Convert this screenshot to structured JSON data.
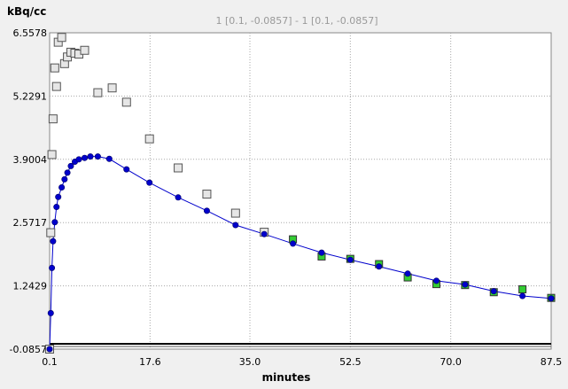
{
  "chart_data": {
    "type": "scatter",
    "title": "1 [0.1, -0.0857] - 1 [0.1, -0.0857]",
    "xlabel": "minutes",
    "ylabel": "kBq/cc",
    "xlim": [
      0.1,
      87.5
    ],
    "ylim": [
      -0.0857,
      6.5578
    ],
    "x_ticks": [
      "0.1",
      "17.6",
      "35.0",
      "52.5",
      "70.0",
      "87.5"
    ],
    "y_ticks": [
      "-0.0857",
      "1.2429",
      "2.5717",
      "3.9004",
      "5.2291",
      "6.5578"
    ],
    "grid": true,
    "legend": "none",
    "series": [
      {
        "kind": "markers-gray-squares",
        "color": "#e6e6e6",
        "x": [
          0.1,
          0.3,
          0.5,
          0.7,
          1.0,
          1.3,
          1.6,
          2.2,
          2.7,
          3.2,
          3.8,
          4.5,
          5.2,
          6.2,
          8.5,
          11.0,
          13.5,
          17.5,
          22.5,
          27.5,
          32.5,
          37.5
        ],
        "y": [
          -0.0857,
          2.36,
          4.0,
          4.75,
          5.82,
          5.43,
          6.36,
          6.46,
          5.91,
          6.05,
          6.15,
          6.13,
          6.11,
          6.19,
          5.3,
          5.4,
          5.1,
          4.33,
          3.72,
          3.17,
          2.77,
          2.37
        ]
      },
      {
        "kind": "markers-green-squares",
        "color": "#33cc33",
        "x": [
          42.5,
          47.5,
          52.5,
          57.5,
          62.5,
          67.5,
          72.5,
          77.5,
          82.5,
          87.5
        ],
        "y": [
          2.22,
          1.86,
          1.81,
          1.7,
          1.42,
          1.28,
          1.26,
          1.11,
          1.17,
          0.99
        ]
      },
      {
        "kind": "model-line-blue",
        "color": "#0000cc",
        "x": [
          0.1,
          0.3,
          0.5,
          0.7,
          1.0,
          1.3,
          1.6,
          2.2,
          2.7,
          3.2,
          3.8,
          4.5,
          5.2,
          6.2,
          7.2,
          8.5,
          10.5,
          13.5,
          17.5,
          22.5,
          27.5,
          32.5,
          37.5,
          42.5,
          47.5,
          52.5,
          57.5,
          62.5,
          67.5,
          72.5,
          77.5,
          82.5,
          87.5
        ],
        "y": [
          -0.0857,
          0.67,
          1.62,
          2.18,
          2.58,
          2.9,
          3.11,
          3.31,
          3.48,
          3.62,
          3.76,
          3.85,
          3.9,
          3.93,
          3.96,
          3.96,
          3.91,
          3.69,
          3.41,
          3.1,
          2.82,
          2.52,
          2.33,
          2.13,
          1.94,
          1.79,
          1.65,
          1.5,
          1.35,
          1.27,
          1.13,
          1.03,
          0.98
        ]
      }
    ]
  }
}
